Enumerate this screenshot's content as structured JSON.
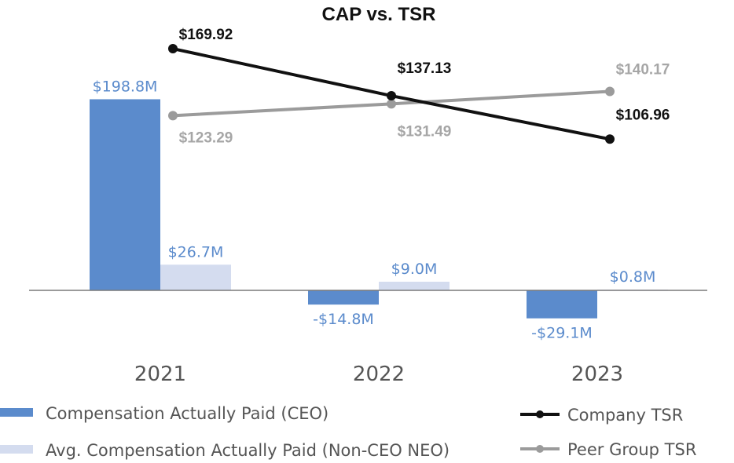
{
  "colors": {
    "ceo": "#5b8bcc",
    "neo": "#d4dcef",
    "company": "#111111",
    "peer": "#9b9b9b",
    "bar_label": "#5b8bcc",
    "peer_label": "#a6a6a6",
    "axis": "#7a7a7a"
  },
  "chart_data": {
    "type": "bar+line",
    "title": "CAP vs. TSR",
    "categories": [
      "2021",
      "2022",
      "2023"
    ],
    "bar_series": [
      {
        "name": "Compensation Actually Paid (CEO)",
        "values": [
          198.8,
          -14.8,
          -29.1
        ],
        "labels": [
          "$198.8M",
          "-$14.8M",
          "-$29.1M"
        ]
      },
      {
        "name": "Avg. Compensation Actually Paid (Non-CEO NEO)",
        "values": [
          26.7,
          9.0,
          0.8
        ],
        "labels": [
          "$26.7M",
          "$9.0M",
          "$0.8M"
        ]
      }
    ],
    "line_series": [
      {
        "name": "Company TSR",
        "values": [
          169.92,
          137.13,
          106.96
        ],
        "labels": [
          "$169.92",
          "$137.13",
          "$106.96"
        ]
      },
      {
        "name": "Peer Group TSR",
        "values": [
          123.29,
          131.49,
          140.17
        ],
        "labels": [
          "$123.29",
          "$131.49",
          "$140.17"
        ]
      }
    ],
    "bar_axis_range": [
      -40,
      200
    ],
    "line_axis_range": [
      0,
      300
    ]
  }
}
